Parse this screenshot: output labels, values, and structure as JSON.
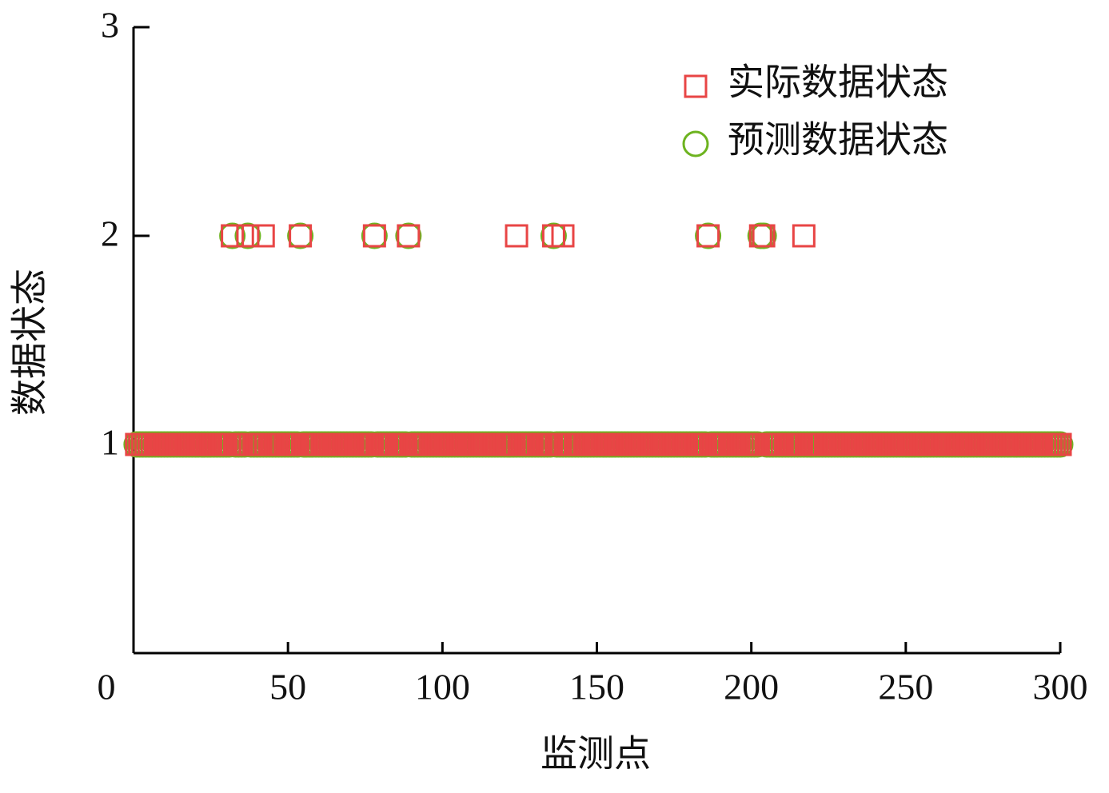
{
  "chart_data": {
    "type": "scatter",
    "x_label": "监测点",
    "y_label": "数据状态",
    "xlim": [
      0,
      300
    ],
    "xticks": [
      0,
      50,
      100,
      150,
      200,
      250,
      300
    ],
    "ylim": [
      0,
      3
    ],
    "yticks": [
      1,
      2,
      3
    ],
    "legend": "upper right",
    "x": [
      1,
      2,
      3,
      4,
      5,
      6,
      7,
      8,
      9,
      10,
      11,
      12,
      13,
      14,
      15,
      16,
      17,
      18,
      19,
      20,
      21,
      22,
      23,
      24,
      25,
      26,
      27,
      28,
      29,
      30,
      31,
      32,
      33,
      34,
      35,
      36,
      37,
      38,
      39,
      40,
      41,
      42,
      43,
      44,
      45,
      46,
      47,
      48,
      49,
      50,
      51,
      52,
      53,
      54,
      55,
      56,
      57,
      58,
      59,
      60,
      61,
      62,
      63,
      64,
      65,
      66,
      67,
      68,
      69,
      70,
      71,
      72,
      73,
      74,
      75,
      76,
      77,
      78,
      79,
      80,
      81,
      82,
      83,
      84,
      85,
      86,
      87,
      88,
      89,
      90,
      91,
      92,
      93,
      94,
      95,
      96,
      97,
      98,
      99,
      100,
      101,
      102,
      103,
      104,
      105,
      106,
      107,
      108,
      109,
      110,
      111,
      112,
      113,
      114,
      115,
      116,
      117,
      118,
      119,
      120,
      121,
      122,
      123,
      124,
      125,
      126,
      127,
      128,
      129,
      130,
      131,
      132,
      133,
      134,
      135,
      136,
      137,
      138,
      139,
      140,
      141,
      142,
      143,
      144,
      145,
      146,
      147,
      148,
      149,
      150,
      151,
      152,
      153,
      154,
      155,
      156,
      157,
      158,
      159,
      160,
      161,
      162,
      163,
      164,
      165,
      166,
      167,
      168,
      169,
      170,
      171,
      172,
      173,
      174,
      175,
      176,
      177,
      178,
      179,
      180,
      181,
      182,
      183,
      184,
      185,
      186,
      187,
      188,
      189,
      190,
      191,
      192,
      193,
      194,
      195,
      196,
      197,
      198,
      199,
      200,
      201,
      202,
      203,
      204,
      205,
      206,
      207,
      208,
      209,
      210,
      211,
      212,
      213,
      214,
      215,
      216,
      217,
      218,
      219,
      220,
      221,
      222,
      223,
      224,
      225,
      226,
      227,
      228,
      229,
      230,
      231,
      232,
      233,
      234,
      235,
      236,
      237,
      238,
      239,
      240,
      241,
      242,
      243,
      244,
      245,
      246,
      247,
      248,
      249,
      250,
      251,
      252,
      253,
      254,
      255,
      256,
      257,
      258,
      259,
      260,
      261,
      262,
      263,
      264,
      265,
      266,
      267,
      268,
      269,
      270,
      271,
      272,
      273,
      274,
      275,
      276,
      277,
      278,
      279,
      280,
      281,
      282,
      283,
      284,
      285,
      286,
      287,
      288,
      289,
      290,
      291,
      292,
      293,
      294,
      295,
      296,
      297,
      298,
      299,
      300
    ],
    "series": [
      {
        "name": "实际数据状态",
        "color": "#e84545",
        "marker": "square",
        "values": [
          1,
          1,
          1,
          1,
          1,
          1,
          1,
          1,
          1,
          1,
          1,
          1,
          1,
          1,
          1,
          1,
          1,
          1,
          1,
          1,
          1,
          1,
          1,
          1,
          1,
          1,
          1,
          1,
          1,
          1,
          1,
          2,
          1,
          1,
          1,
          1,
          2,
          1,
          1,
          1,
          1,
          2,
          1,
          1,
          1,
          1,
          1,
          1,
          1,
          1,
          1,
          1,
          1,
          2,
          1,
          1,
          1,
          1,
          1,
          1,
          1,
          1,
          1,
          1,
          1,
          1,
          1,
          1,
          1,
          1,
          1,
          1,
          1,
          1,
          1,
          1,
          1,
          2,
          1,
          1,
          1,
          1,
          1,
          1,
          1,
          1,
          1,
          1,
          2,
          1,
          1,
          1,
          1,
          1,
          1,
          1,
          1,
          1,
          1,
          1,
          1,
          1,
          1,
          1,
          1,
          1,
          1,
          1,
          1,
          1,
          1,
          1,
          1,
          1,
          1,
          1,
          1,
          1,
          1,
          1,
          1,
          1,
          1,
          2,
          1,
          1,
          1,
          1,
          1,
          1,
          1,
          1,
          1,
          1,
          1,
          2,
          1,
          1,
          2,
          1,
          1,
          1,
          1,
          1,
          1,
          1,
          1,
          1,
          1,
          1,
          1,
          1,
          1,
          1,
          1,
          1,
          1,
          1,
          1,
          1,
          1,
          1,
          1,
          1,
          1,
          1,
          1,
          1,
          1,
          1,
          1,
          1,
          1,
          1,
          1,
          1,
          1,
          1,
          1,
          1,
          1,
          1,
          1,
          1,
          1,
          2,
          1,
          1,
          1,
          1,
          1,
          1,
          1,
          1,
          1,
          1,
          1,
          1,
          1,
          1,
          1,
          1,
          2,
          2,
          1,
          1,
          1,
          1,
          1,
          1,
          1,
          1,
          1,
          1,
          1,
          1,
          2,
          1,
          1,
          1,
          1,
          1,
          1,
          1,
          1,
          1,
          1,
          1,
          1,
          1,
          1,
          1,
          1,
          1,
          1,
          1,
          1,
          1,
          1,
          1,
          1,
          1,
          1,
          1,
          1,
          1,
          1,
          1,
          1,
          1,
          1,
          1,
          1,
          1,
          1,
          1,
          1,
          1,
          1,
          1,
          1,
          1,
          1,
          1,
          1,
          1,
          1,
          1,
          1,
          1,
          1,
          1,
          1,
          1,
          1,
          1,
          1,
          1,
          1,
          1,
          1,
          1,
          1,
          1,
          1,
          1,
          1,
          1,
          1,
          1,
          1,
          1,
          1,
          1,
          1,
          1,
          1,
          1,
          1,
          1
        ]
      },
      {
        "name": "预测数据状态",
        "color": "#6db31f",
        "marker": "circle",
        "values": [
          1,
          1,
          1,
          1,
          1,
          1,
          1,
          1,
          1,
          1,
          1,
          1,
          1,
          1,
          1,
          1,
          1,
          1,
          1,
          1,
          1,
          1,
          1,
          1,
          1,
          1,
          1,
          1,
          1,
          1,
          1,
          2,
          1,
          1,
          1,
          1,
          2,
          1,
          1,
          1,
          1,
          1,
          1,
          1,
          1,
          1,
          1,
          1,
          1,
          1,
          1,
          1,
          1,
          2,
          1,
          1,
          1,
          1,
          1,
          1,
          1,
          1,
          1,
          1,
          1,
          1,
          1,
          1,
          1,
          1,
          1,
          1,
          1,
          1,
          1,
          1,
          1,
          2,
          1,
          1,
          1,
          1,
          1,
          1,
          1,
          1,
          1,
          1,
          2,
          1,
          1,
          1,
          1,
          1,
          1,
          1,
          1,
          1,
          1,
          1,
          1,
          1,
          1,
          1,
          1,
          1,
          1,
          1,
          1,
          1,
          1,
          1,
          1,
          1,
          1,
          1,
          1,
          1,
          1,
          1,
          1,
          1,
          1,
          1,
          1,
          1,
          1,
          1,
          1,
          1,
          1,
          1,
          1,
          1,
          1,
          2,
          1,
          1,
          1,
          1,
          1,
          1,
          1,
          1,
          1,
          1,
          1,
          1,
          1,
          1,
          1,
          1,
          1,
          1,
          1,
          1,
          1,
          1,
          1,
          1,
          1,
          1,
          1,
          1,
          1,
          1,
          1,
          1,
          1,
          1,
          1,
          1,
          1,
          1,
          1,
          1,
          1,
          1,
          1,
          1,
          1,
          1,
          1,
          1,
          1,
          2,
          1,
          1,
          1,
          1,
          1,
          1,
          1,
          1,
          1,
          1,
          1,
          1,
          1,
          1,
          1,
          1,
          2,
          2,
          1,
          1,
          1,
          1,
          1,
          1,
          1,
          1,
          1,
          1,
          1,
          1,
          1,
          1,
          1,
          1,
          1,
          1,
          1,
          1,
          1,
          1,
          1,
          1,
          1,
          1,
          1,
          1,
          1,
          1,
          1,
          1,
          1,
          1,
          1,
          1,
          1,
          1,
          1,
          1,
          1,
          1,
          1,
          1,
          1,
          1,
          1,
          1,
          1,
          1,
          1,
          1,
          1,
          1,
          1,
          1,
          1,
          1,
          1,
          1,
          1,
          1,
          1,
          1,
          1,
          1,
          1,
          1,
          1,
          1,
          1,
          1,
          1,
          1,
          1,
          1,
          1,
          1,
          1,
          1,
          1,
          1,
          1,
          1,
          1,
          1,
          1,
          1,
          1,
          1,
          1,
          1,
          1,
          1,
          1,
          1
        ]
      }
    ]
  }
}
